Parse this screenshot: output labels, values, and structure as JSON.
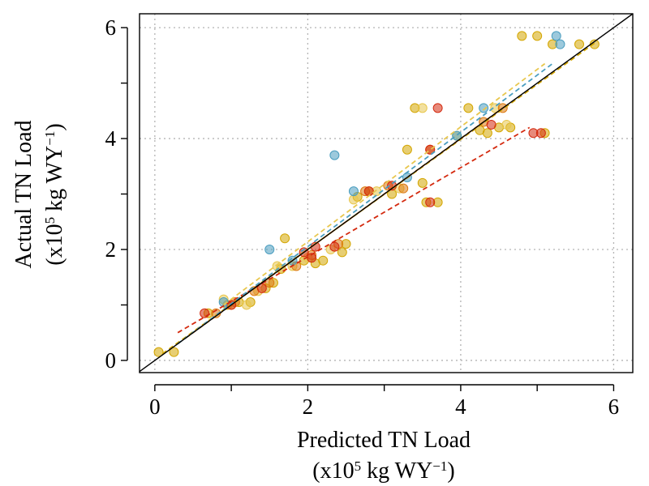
{
  "chart_data": {
    "type": "scatter",
    "xlabel": "Predicted TN Load",
    "xlabel_unit": "(x10",
    "ylabel": "Actual TN Load",
    "ylabel_unit": "(x10",
    "unit_exponent": "5",
    "unit_rest": " kg WY",
    "unit_rest_exponent": "−1",
    "unit_close": ")",
    "xlim": [
      -0.2,
      6.25
    ],
    "ylim": [
      -0.22,
      6.25
    ],
    "x_ticks": [
      0,
      2,
      4,
      6
    ],
    "y_ticks": [
      0,
      2,
      4,
      6
    ],
    "x_tick_labels": [
      "0",
      "2",
      "4",
      "6"
    ],
    "y_tick_labels": [
      "0",
      "2",
      "4",
      "6"
    ],
    "grid": true,
    "identity_line": true,
    "series": [
      {
        "color": "#d4a600",
        "fit": [
          [
            0.1,
            0.12
          ],
          [
            5.75,
            5.72
          ]
        ],
        "points": [
          [
            0.05,
            0.15
          ],
          [
            0.25,
            0.15
          ],
          [
            0.7,
            0.85
          ],
          [
            0.95,
            1.0
          ],
          [
            1.1,
            1.05
          ],
          [
            1.25,
            1.05
          ],
          [
            1.45,
            1.3
          ],
          [
            1.55,
            1.4
          ],
          [
            1.65,
            1.65
          ],
          [
            1.7,
            2.2
          ],
          [
            1.95,
            1.8
          ],
          [
            2.1,
            1.75
          ],
          [
            2.2,
            1.8
          ],
          [
            2.45,
            1.95
          ],
          [
            2.5,
            2.1
          ],
          [
            2.65,
            2.95
          ],
          [
            2.8,
            3.05
          ],
          [
            3.1,
            3.0
          ],
          [
            3.3,
            3.8
          ],
          [
            3.4,
            4.55
          ],
          [
            3.5,
            3.2
          ],
          [
            3.55,
            2.85
          ],
          [
            3.7,
            2.85
          ],
          [
            4.1,
            4.55
          ],
          [
            4.25,
            4.15
          ],
          [
            4.35,
            4.1
          ],
          [
            4.5,
            4.2
          ],
          [
            4.65,
            4.2
          ],
          [
            4.8,
            5.85
          ],
          [
            5.0,
            5.85
          ],
          [
            5.1,
            4.1
          ],
          [
            5.2,
            5.7
          ],
          [
            5.55,
            5.7
          ],
          [
            5.75,
            5.7
          ]
        ]
      },
      {
        "color": "#e8c74e",
        "fit": [
          [
            0.9,
            1.0
          ],
          [
            5.1,
            5.35
          ]
        ],
        "points": [
          [
            0.9,
            1.1
          ],
          [
            1.0,
            1.0
          ],
          [
            1.2,
            1.0
          ],
          [
            1.35,
            1.25
          ],
          [
            1.6,
            1.7
          ],
          [
            1.8,
            1.7
          ],
          [
            2.0,
            1.85
          ],
          [
            2.3,
            2.0
          ],
          [
            2.6,
            2.9
          ],
          [
            2.9,
            3.05
          ],
          [
            3.2,
            3.1
          ],
          [
            3.5,
            4.55
          ],
          [
            3.95,
            4.05
          ],
          [
            4.45,
            4.55
          ],
          [
            4.6,
            4.25
          ]
        ]
      },
      {
        "color": "#dd7a10",
        "fit": [
          [
            0.4,
            0.4
          ],
          [
            4.6,
            4.6
          ]
        ],
        "points": [
          [
            0.8,
            0.85
          ],
          [
            1.05,
            1.05
          ],
          [
            1.3,
            1.25
          ],
          [
            1.5,
            1.4
          ],
          [
            1.85,
            1.7
          ],
          [
            2.05,
            1.9
          ],
          [
            2.4,
            2.1
          ],
          [
            2.75,
            3.05
          ],
          [
            3.05,
            3.15
          ],
          [
            3.25,
            3.1
          ],
          [
            3.6,
            3.8
          ],
          [
            4.3,
            4.3
          ],
          [
            4.55,
            4.55
          ]
        ]
      },
      {
        "color": "#d42a0f",
        "fit": [
          [
            0.3,
            0.5
          ],
          [
            4.9,
            4.2
          ]
        ],
        "points": [
          [
            0.65,
            0.85
          ],
          [
            1.0,
            1.0
          ],
          [
            1.4,
            1.3
          ],
          [
            1.95,
            1.95
          ],
          [
            2.05,
            1.85
          ],
          [
            2.1,
            2.05
          ],
          [
            2.35,
            2.05
          ],
          [
            2.8,
            3.05
          ],
          [
            3.1,
            3.15
          ],
          [
            3.6,
            2.85
          ],
          [
            3.6,
            3.8
          ],
          [
            3.7,
            4.55
          ],
          [
            4.4,
            4.25
          ],
          [
            4.95,
            4.1
          ],
          [
            5.05,
            4.1
          ]
        ]
      },
      {
        "color": "#4a9dbf",
        "fit": [
          [
            0.3,
            0.3
          ],
          [
            5.2,
            5.35
          ]
        ],
        "points": [
          [
            0.9,
            1.05
          ],
          [
            1.5,
            2.0
          ],
          [
            1.8,
            1.8
          ],
          [
            2.35,
            3.7
          ],
          [
            2.6,
            3.05
          ],
          [
            3.3,
            3.3
          ],
          [
            3.95,
            4.05
          ],
          [
            4.3,
            4.55
          ],
          [
            5.25,
            5.85
          ],
          [
            5.3,
            5.7
          ]
        ]
      }
    ]
  }
}
